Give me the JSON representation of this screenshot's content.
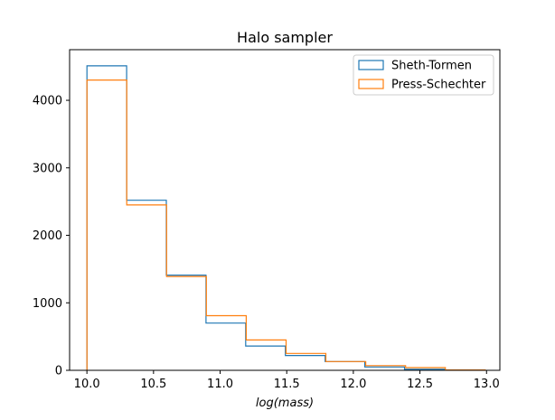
{
  "chart_data": {
    "type": "histogram-step",
    "title": "Halo sampler",
    "xlabel": "log(mass)",
    "ylabel": "",
    "xlim": [
      9.87,
      13.1
    ],
    "ylim": [
      0,
      4750
    ],
    "xticks": [
      10.0,
      10.5,
      11.0,
      11.5,
      12.0,
      12.5,
      13.0
    ],
    "xtick_labels": [
      "10.0",
      "10.5",
      "11.0",
      "11.5",
      "12.0",
      "12.5",
      "13.0"
    ],
    "yticks": [
      0,
      1000,
      2000,
      3000,
      4000
    ],
    "ytick_labels": [
      "0",
      "1000",
      "2000",
      "3000",
      "4000"
    ],
    "legend_position": "top-right",
    "series": [
      {
        "name": "Sheth-Tormen",
        "color": "#1f77b4",
        "edges": [
          10.0,
          10.298,
          10.596,
          10.894,
          11.192,
          11.49,
          11.788,
          12.086,
          12.384,
          12.682,
          12.98
        ],
        "counts": [
          4510,
          2520,
          1410,
          700,
          360,
          220,
          130,
          50,
          15,
          5
        ]
      },
      {
        "name": "Press-Schechter",
        "color": "#ff7f0e",
        "edges": [
          10.0,
          10.299,
          10.598,
          10.897,
          11.196,
          11.495,
          11.794,
          12.093,
          12.392,
          12.691,
          12.99
        ],
        "counts": [
          4300,
          2450,
          1390,
          810,
          450,
          250,
          130,
          70,
          40,
          5
        ]
      }
    ]
  }
}
